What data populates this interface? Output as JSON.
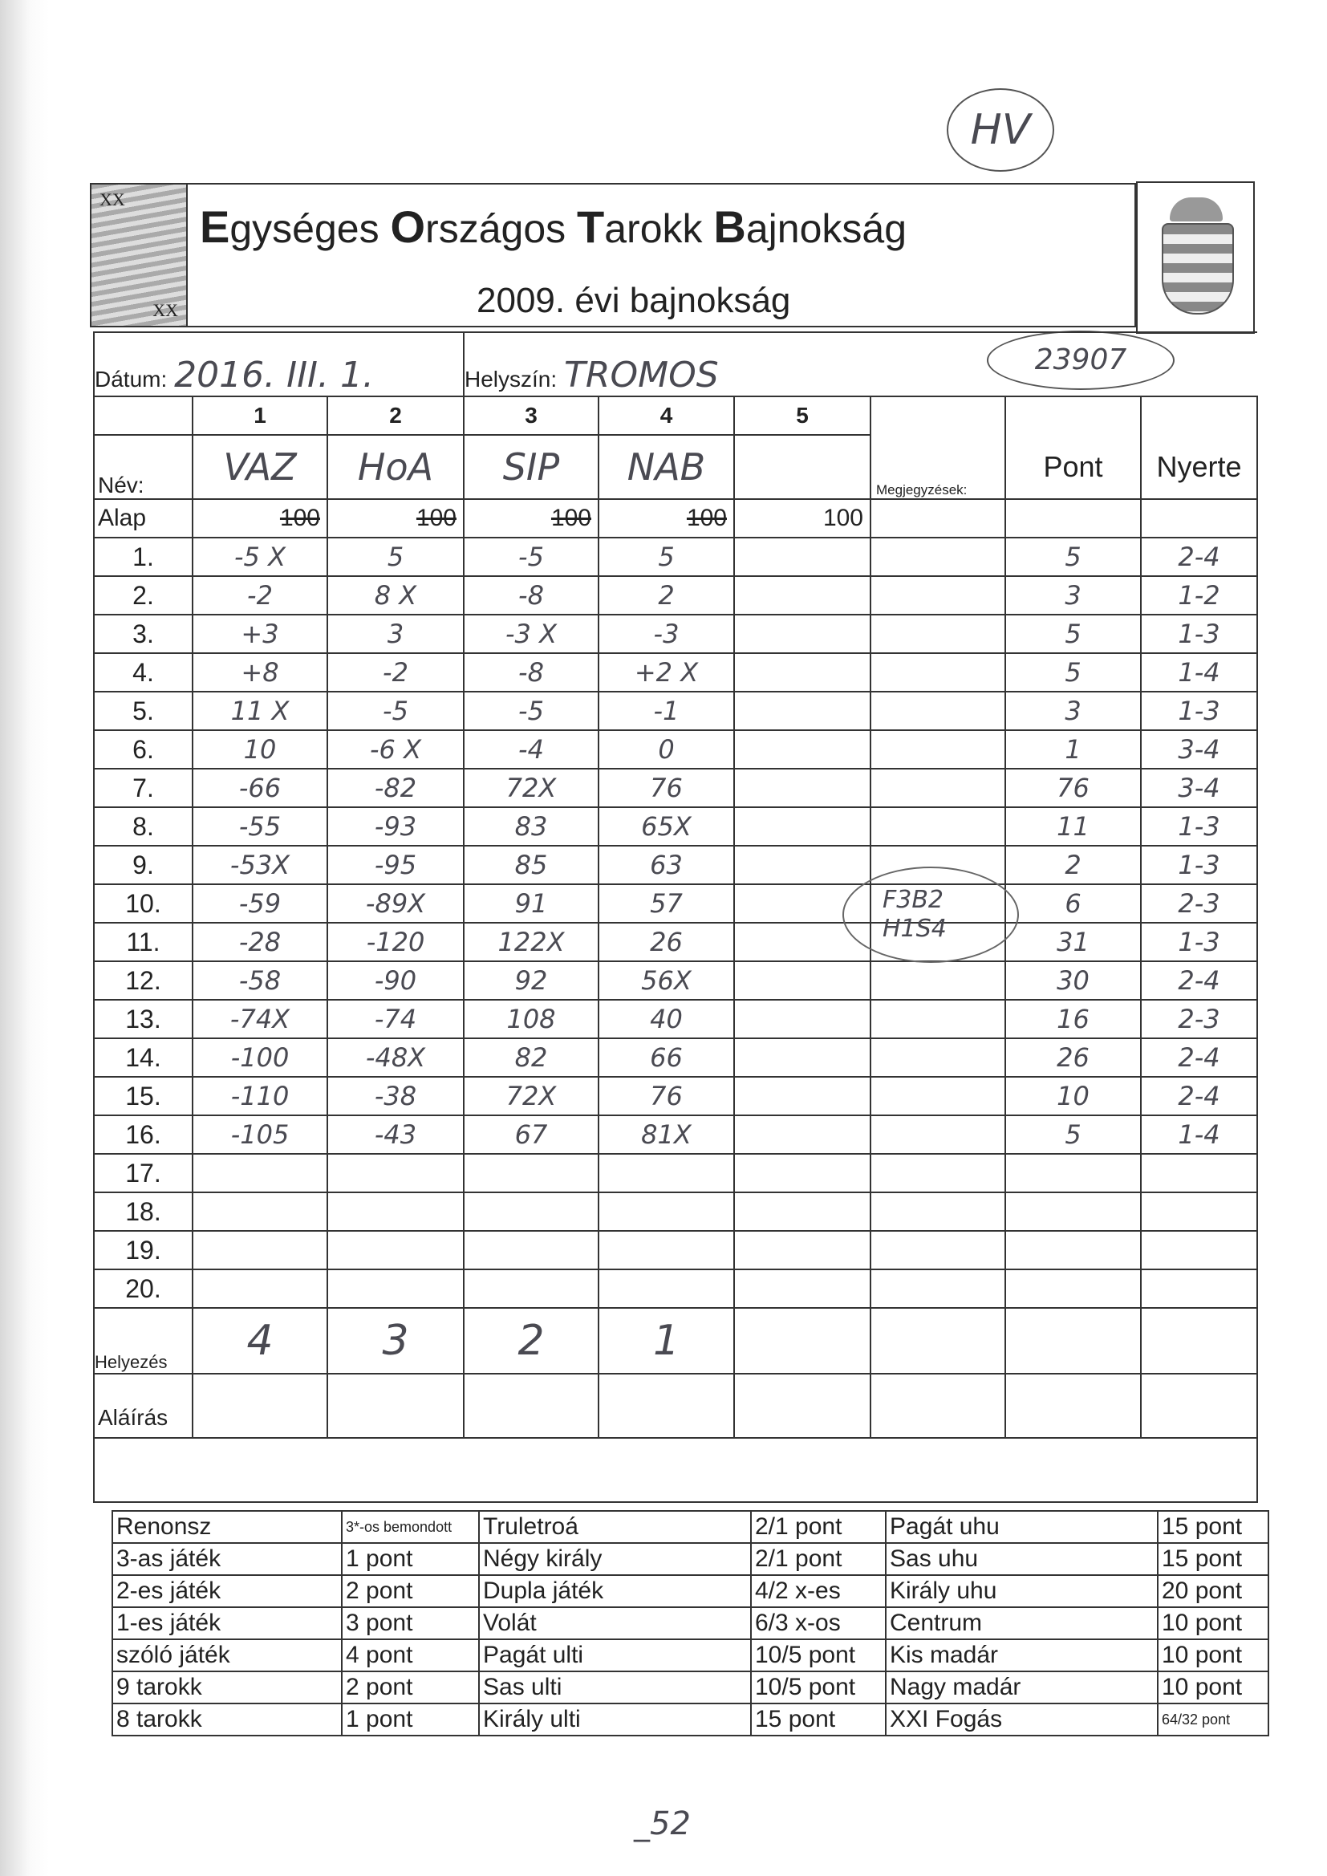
{
  "header": {
    "title_parts": [
      {
        "cap": "E",
        "rest": "gységes "
      },
      {
        "cap": "O",
        "rest": "rszágos "
      },
      {
        "cap": "T",
        "rest": "arokk "
      },
      {
        "cap": "B",
        "rest": "ajnokság"
      }
    ],
    "subtitle": "2009. évi bajnokság",
    "logo_text_top": "XX",
    "logo_text_bottom": "XX"
  },
  "annotations": {
    "top_circle": "HV",
    "id_circle": "23907",
    "bottom_note": "_52",
    "notes_circle": [
      "F3B2",
      "H1S4"
    ]
  },
  "form": {
    "date_label": "Dátum:",
    "date_value": "2016. III. 1.",
    "place_label": "Helyszín:",
    "place_value": "TROMOS",
    "player_numbers": [
      "1",
      "2",
      "3",
      "4",
      "5"
    ],
    "notes_label": "Megjegyzések:",
    "pont_label": "Pont",
    "nyerte_label": "Nyerte",
    "name_label": "Név:",
    "names": [
      "VAZ",
      "HoA",
      "SIP",
      "NAB",
      ""
    ],
    "alap_label": "Alap",
    "alap_values": [
      "100",
      "100",
      "100",
      "100",
      "100"
    ],
    "rows": [
      {
        "n": "1.",
        "v": [
          "-5 X",
          "5",
          "-5",
          "5"
        ],
        "pont": "5",
        "nyerte": "2-4"
      },
      {
        "n": "2.",
        "v": [
          "-2",
          "8 X",
          "-8",
          "2"
        ],
        "pont": "3",
        "nyerte": "1-2"
      },
      {
        "n": "3.",
        "v": [
          "+3",
          "3",
          "-3 X",
          "-3"
        ],
        "pont": "5",
        "nyerte": "1-3"
      },
      {
        "n": "4.",
        "v": [
          "+8",
          "-2",
          "-8",
          "+2 X"
        ],
        "pont": "5",
        "nyerte": "1-4"
      },
      {
        "n": "5.",
        "v": [
          "11 X",
          "-5",
          "-5",
          "-1"
        ],
        "pont": "3",
        "nyerte": "1-3"
      },
      {
        "n": "6.",
        "v": [
          "10",
          "-6 X",
          "-4",
          "0"
        ],
        "pont": "1",
        "nyerte": "3-4"
      },
      {
        "n": "7.",
        "v": [
          "-66",
          "-82",
          "72X",
          "76"
        ],
        "pont": "76",
        "nyerte": "3-4"
      },
      {
        "n": "8.",
        "v": [
          "-55",
          "-93",
          "83",
          "65X"
        ],
        "pont": "11",
        "nyerte": "1-3"
      },
      {
        "n": "9.",
        "v": [
          "-53X",
          "-95",
          "85",
          "63"
        ],
        "pont": "2",
        "nyerte": "1-3"
      },
      {
        "n": "10.",
        "v": [
          "-59",
          "-89X",
          "91",
          "57"
        ],
        "pont": "6",
        "nyerte": "2-3"
      },
      {
        "n": "11.",
        "v": [
          "-28",
          "-120",
          "122X",
          "26"
        ],
        "pont": "31",
        "nyerte": "1-3"
      },
      {
        "n": "12.",
        "v": [
          "-58",
          "-90",
          "92",
          "56X"
        ],
        "pont": "30",
        "nyerte": "2-4"
      },
      {
        "n": "13.",
        "v": [
          "-74X",
          "-74",
          "108",
          "40"
        ],
        "pont": "16",
        "nyerte": "2-3"
      },
      {
        "n": "14.",
        "v": [
          "-100",
          "-48X",
          "82",
          "66"
        ],
        "pont": "26",
        "nyerte": "2-4"
      },
      {
        "n": "15.",
        "v": [
          "-110",
          "-38",
          "72X",
          "76"
        ],
        "pont": "10",
        "nyerte": "2-4"
      },
      {
        "n": "16.",
        "v": [
          "-105",
          "-43",
          "67",
          "81X"
        ],
        "pont": "5",
        "nyerte": "1-4"
      },
      {
        "n": "17.",
        "v": [
          "",
          "",
          "",
          ""
        ],
        "pont": "",
        "nyerte": ""
      },
      {
        "n": "18.",
        "v": [
          "",
          "",
          "",
          ""
        ],
        "pont": "",
        "nyerte": ""
      },
      {
        "n": "19.",
        "v": [
          "",
          "",
          "",
          ""
        ],
        "pont": "",
        "nyerte": ""
      },
      {
        "n": "20.",
        "v": [
          "",
          "",
          "",
          ""
        ],
        "pont": "",
        "nyerte": ""
      }
    ],
    "placement_label": "Helyezés",
    "placements": [
      "4",
      "3",
      "2",
      "1"
    ],
    "signature_label": "Aláírás"
  },
  "scoring": [
    [
      "Renonsz",
      "3*-os bemondott",
      "Truletroá",
      "2/1 pont",
      "Pagát uhu",
      "15 pont"
    ],
    [
      "3-as játék",
      "1 pont",
      "Négy király",
      "2/1 pont",
      "Sas uhu",
      "15 pont"
    ],
    [
      "2-es játék",
      "2 pont",
      "Dupla játék",
      "4/2 x-es",
      "Király uhu",
      "20 pont"
    ],
    [
      "1-es játék",
      "3 pont",
      "Volát",
      "6/3 x-os",
      "Centrum",
      "10 pont"
    ],
    [
      "szóló játék",
      "4 pont",
      "Pagát ulti",
      "10/5 pont",
      "Kis madár",
      "10 pont"
    ],
    [
      "9 tarokk",
      "2 pont",
      "Sas ulti",
      "10/5 pont",
      "Nagy madár",
      "10 pont"
    ],
    [
      "8 tarokk",
      "1 pont",
      "Király ulti",
      "15 pont",
      "XXI Fogás",
      "64/32 pont"
    ]
  ]
}
